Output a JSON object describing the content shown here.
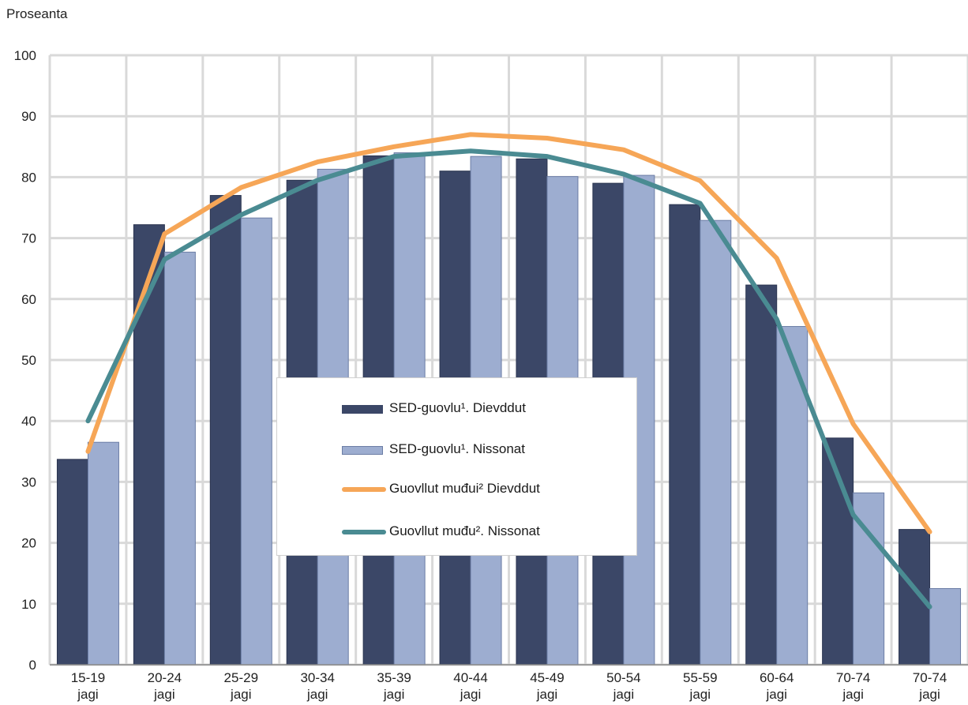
{
  "chart_data": {
    "type": "bar",
    "ylabel": "Proseanta",
    "ylim": [
      0,
      100
    ],
    "yticks": [
      0,
      10,
      20,
      30,
      40,
      50,
      60,
      70,
      80,
      90,
      100
    ],
    "grid": true,
    "categories": [
      "15-19 jagi",
      "20-24 jagi",
      "25-29 jagi",
      "30-34 jagi",
      "35-39 jagi",
      "40-44 jagi",
      "45-49 jagi",
      "50-54 jagi",
      "55-59 jagi",
      "60-64 jagi",
      "70-74 jagi",
      "70-74 jagi"
    ],
    "bar_series": [
      {
        "name": "SED-guovlu¹. Dievddut",
        "color": "#3b4767",
        "values": [
          33.7,
          72.2,
          77.0,
          79.5,
          83.5,
          81.0,
          83.0,
          79.0,
          75.5,
          62.3,
          37.2,
          22.2
        ]
      },
      {
        "name": "SED-guovlu¹. Nissonat",
        "color": "#9dadd0",
        "values": [
          36.5,
          67.7,
          73.3,
          81.3,
          84.0,
          83.4,
          80.1,
          80.3,
          72.9,
          55.5,
          28.2,
          12.5
        ]
      }
    ],
    "line_series": [
      {
        "name": "Guovllut muđui² Dievddut",
        "color": "#f6a657",
        "values": [
          35.0,
          70.7,
          78.3,
          82.5,
          85.0,
          87.0,
          86.4,
          84.5,
          79.4,
          66.7,
          39.5,
          21.8
        ]
      },
      {
        "name": "Guovllut muđu². Nissonat",
        "color": "#4a8b92",
        "values": [
          40.0,
          66.5,
          73.8,
          79.5,
          83.4,
          84.3,
          83.4,
          80.5,
          75.7,
          56.7,
          24.6,
          9.5
        ]
      }
    ],
    "legend_position": "center"
  }
}
